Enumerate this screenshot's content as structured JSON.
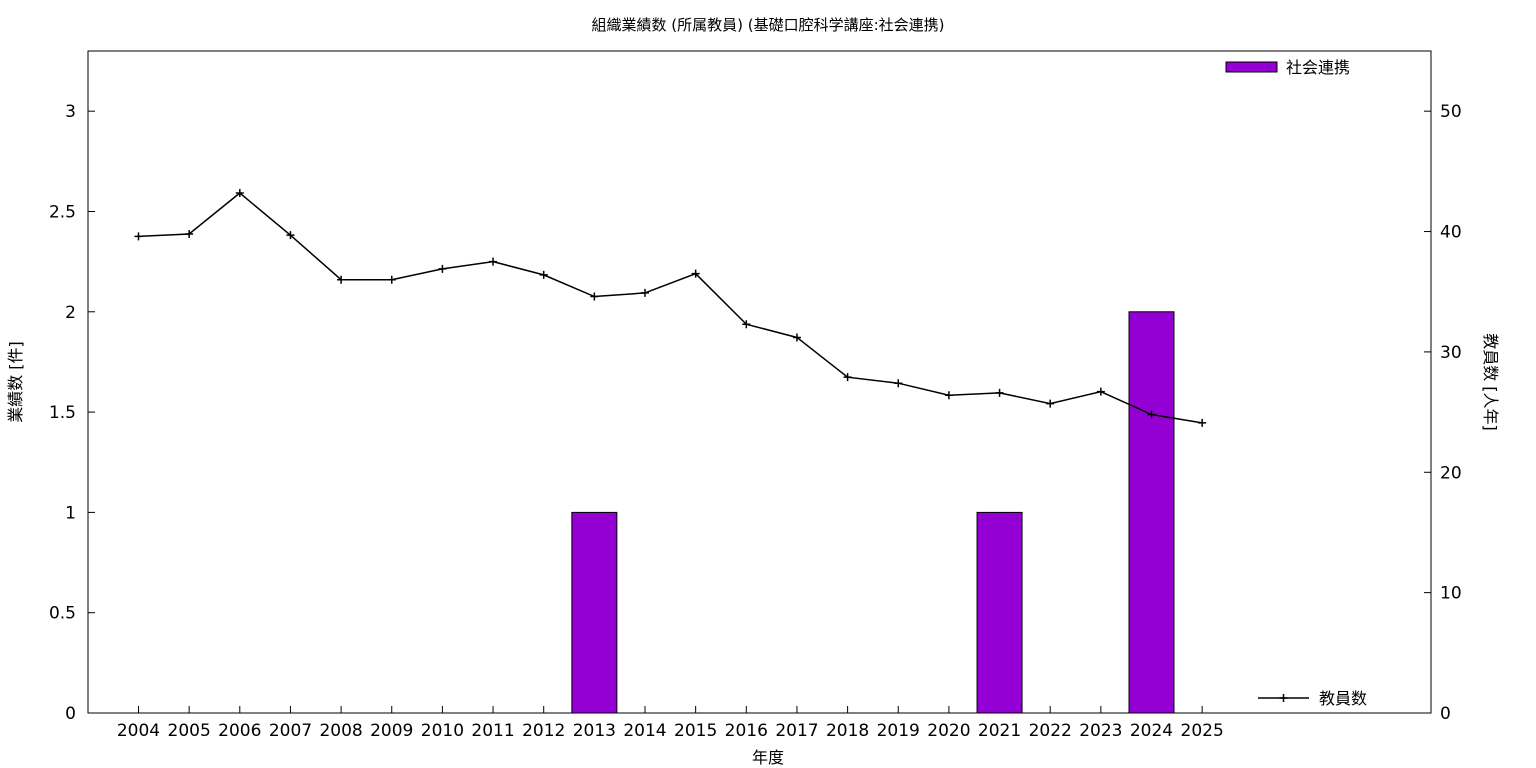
{
  "chart_data": {
    "type": "bar",
    "title": "組織業績数 (所属教員) (基礎口腔科学講座:社会連携)",
    "xlabel": "年度",
    "ylabel": "業績数 [件]",
    "y2label": "教員数 [人年]",
    "categories": [
      "2004",
      "2005",
      "2006",
      "2007",
      "2008",
      "2009",
      "2010",
      "2011",
      "2012",
      "2013",
      "2014",
      "2015",
      "2016",
      "2017",
      "2018",
      "2019",
      "2020",
      "2021",
      "2022",
      "2023",
      "2024",
      "2025"
    ],
    "ylim": [
      0,
      3.3
    ],
    "yticks": [
      "0",
      "0.5",
      "1",
      "1.5",
      "2",
      "2.5",
      "3"
    ],
    "y2lim": [
      0,
      55
    ],
    "y2ticks": [
      "0",
      "10",
      "20",
      "30",
      "40",
      "50"
    ],
    "series": [
      {
        "name": "社会連携",
        "type": "bar",
        "axis": "left",
        "color": "#9400d3",
        "values": [
          0,
          0,
          0,
          0,
          0,
          0,
          0,
          0,
          0,
          1,
          0,
          0,
          0,
          0,
          0,
          0,
          0,
          1,
          0,
          0,
          2,
          0
        ]
      },
      {
        "name": "教員数",
        "type": "line",
        "axis": "right",
        "color": "#000000",
        "values": [
          39.6,
          39.8,
          43.2,
          39.7,
          36.0,
          36.0,
          36.9,
          37.5,
          36.4,
          34.6,
          34.9,
          36.5,
          32.3,
          31.2,
          27.9,
          27.4,
          26.4,
          26.6,
          25.7,
          26.7,
          24.8,
          24.1
        ]
      }
    ],
    "legend": {
      "bar_position": "top-right",
      "line_position": "bottom-right"
    },
    "grid": false
  }
}
